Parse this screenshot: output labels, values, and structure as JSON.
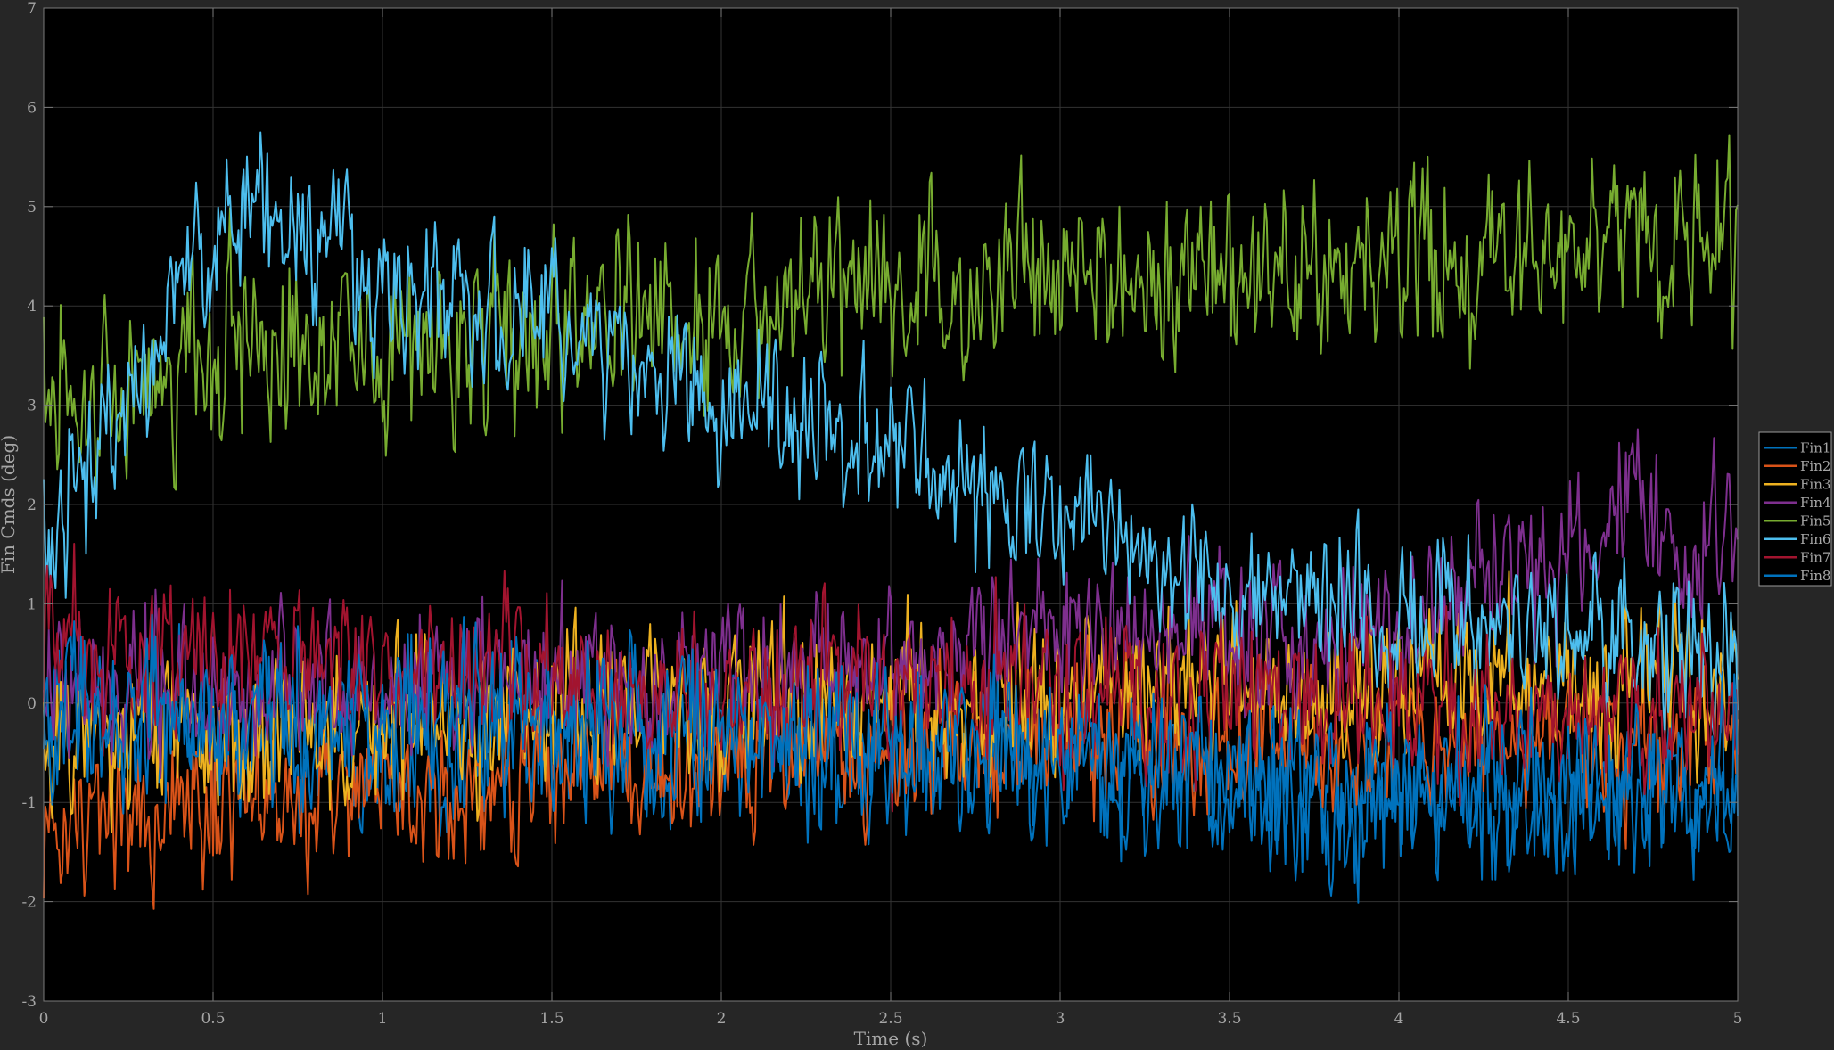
{
  "chart_data": {
    "type": "line",
    "xlabel": "Time (s)",
    "ylabel": "Fin Cmds (deg)",
    "xlim": [
      0,
      5
    ],
    "ylim": [
      -3,
      7
    ],
    "xticks": [
      0,
      0.5,
      1,
      1.5,
      2,
      2.5,
      3,
      3.5,
      4,
      4.5,
      5
    ],
    "xtick_labels": [
      "0",
      "0.5",
      "1",
      "1.5",
      "2",
      "2.5",
      "3",
      "3.5",
      "4",
      "4.5",
      "5"
    ],
    "yticks": [
      -3,
      -2,
      -1,
      0,
      1,
      2,
      3,
      4,
      5,
      6,
      7
    ],
    "ytick_labels": [
      "-3",
      "-2",
      "-1",
      "0",
      "1",
      "2",
      "3",
      "4",
      "5",
      "6",
      "7"
    ],
    "grid": true,
    "legend_placement": "outside-right",
    "sample_count": 1000,
    "series": [
      {
        "name": "Fin1",
        "color": "#0072BD",
        "trend_t": [
          0,
          0.5,
          1,
          1.5,
          2,
          2.5,
          3,
          3.5,
          4,
          4.5,
          5
        ],
        "trend_y": [
          -0.2,
          -0.3,
          -0.35,
          -0.4,
          -0.45,
          -0.55,
          -0.65,
          -0.95,
          -1.05,
          -0.95,
          -0.9
        ],
        "noise_amplitude": 0.55
      },
      {
        "name": "Fin2",
        "color": "#D95319",
        "trend_t": [
          0,
          0.1,
          0.5,
          1,
          1.5,
          2,
          2.5,
          3,
          3.5,
          4,
          4.5,
          5
        ],
        "trend_y": [
          -1.5,
          -1.1,
          -1.0,
          -0.95,
          -0.75,
          -0.55,
          -0.45,
          -0.35,
          -0.3,
          -0.3,
          -0.3,
          -0.3
        ],
        "noise_amplitude": 0.55
      },
      {
        "name": "Fin3",
        "color": "#EDB120",
        "trend_t": [
          0,
          0.5,
          1,
          1.5,
          2,
          2.5,
          3,
          3.5,
          4,
          4.5,
          5
        ],
        "trend_y": [
          -0.4,
          -0.4,
          -0.2,
          -0.1,
          0.0,
          0.05,
          0.1,
          0.2,
          0.2,
          0.25,
          0.3
        ],
        "noise_amplitude": 0.55
      },
      {
        "name": "Fin4",
        "color": "#7E2F8E",
        "trend_t": [
          0,
          0.5,
          1,
          1.5,
          2,
          2.5,
          3,
          3.5,
          4,
          4.2,
          4.5,
          4.7,
          4.85,
          5
        ],
        "trend_y": [
          0.1,
          0.2,
          0.2,
          0.2,
          0.3,
          0.45,
          0.6,
          0.7,
          0.75,
          1.2,
          1.3,
          2.2,
          1.2,
          1.9
        ],
        "noise_amplitude": 0.55
      },
      {
        "name": "Fin5",
        "color": "#77AC30",
        "trend_t": [
          0,
          0.1,
          0.3,
          0.5,
          1,
          1.5,
          2,
          2.5,
          3,
          3.5,
          4,
          4.5,
          5
        ],
        "trend_y": [
          3.6,
          2.8,
          3.3,
          3.6,
          3.6,
          3.8,
          3.9,
          4.1,
          4.2,
          4.3,
          4.4,
          4.5,
          4.6
        ],
        "noise_amplitude": 0.65
      },
      {
        "name": "Fin6",
        "color": "#4DBEEE",
        "trend_t": [
          0,
          0.1,
          0.2,
          0.4,
          0.6,
          0.7,
          1,
          1.5,
          2,
          2.5,
          3,
          3.5,
          4,
          4.5,
          5
        ],
        "trend_y": [
          1.6,
          1.9,
          2.8,
          4.2,
          5.1,
          4.9,
          4.2,
          3.7,
          3.0,
          2.5,
          1.8,
          1.2,
          0.9,
          0.6,
          0.5
        ],
        "noise_amplitude": 0.55
      },
      {
        "name": "Fin7",
        "color": "#A2142F",
        "trend_t": [
          0,
          0.5,
          1,
          1.5,
          2,
          2.5,
          3,
          3.5,
          4,
          4.5,
          5
        ],
        "trend_y": [
          0.55,
          0.45,
          0.35,
          0.3,
          0.2,
          0.15,
          0.1,
          0.0,
          -0.05,
          -0.1,
          -0.15
        ],
        "noise_amplitude": 0.55
      },
      {
        "name": "Fin8",
        "color": "#0072BD",
        "trend_t": [
          0,
          0.5,
          1,
          1.5,
          2,
          2.5,
          3,
          3.5,
          4,
          4.5,
          5
        ],
        "trend_y": [
          -0.1,
          -0.1,
          -0.15,
          -0.2,
          -0.3,
          -0.4,
          -0.5,
          -0.7,
          -0.8,
          -0.75,
          -0.7
        ],
        "noise_amplitude": 0.6
      }
    ]
  }
}
